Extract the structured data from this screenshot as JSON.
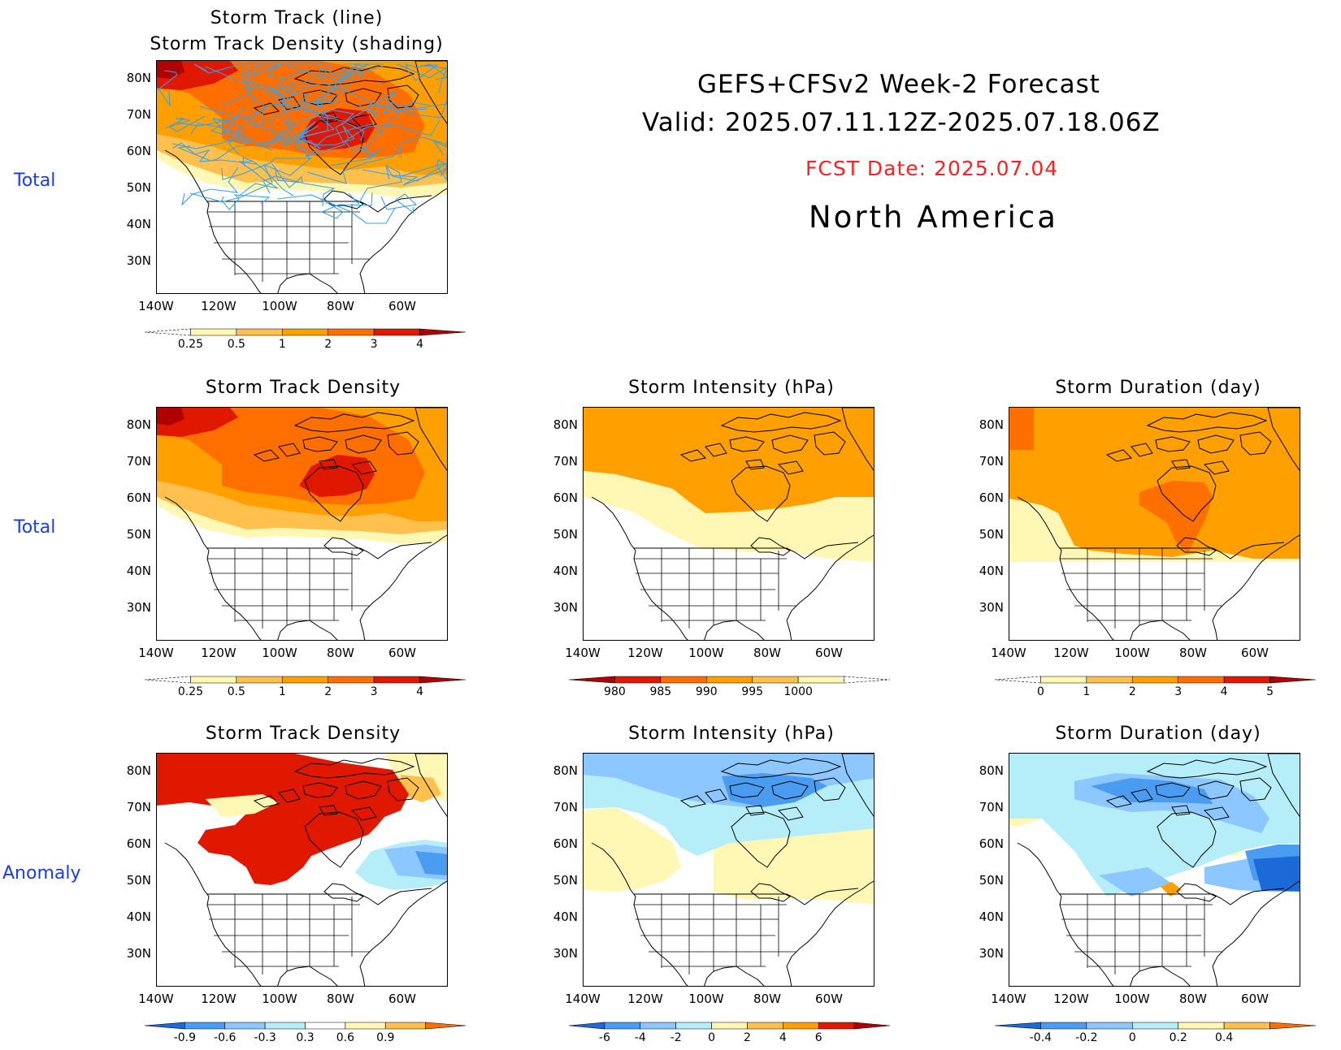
{
  "header": {
    "title_line1": "GEFS+CFSv2 Week-2 Forecast",
    "title_line2": "Valid: 2025.07.11.12Z-2025.07.18.06Z",
    "fcst_date": "FCST Date: 2025.07.04",
    "region": "North America"
  },
  "row_labels": [
    "Total",
    "Total",
    "Anomaly"
  ],
  "axes": {
    "lat_ticks": [
      "80N",
      "70N",
      "60N",
      "50N",
      "40N",
      "30N"
    ],
    "lon_ticks": [
      "140W",
      "120W",
      "100W",
      "80W",
      "60W"
    ]
  },
  "colors": {
    "pale_yellow": "#fff7b3",
    "light_orange": "#ffc04d",
    "orange": "#ffa000",
    "dark_orange": "#ff6f00",
    "red": "#e01800",
    "dark_red": "#b00000",
    "light_cyan": "#b5edf8",
    "light_blue": "#8cc7ff",
    "mid_blue": "#4a9cf0",
    "dark_blue": "#1c6ad8",
    "track_line": "#3aa0e8"
  },
  "panels": [
    {
      "id": "p-track",
      "title_line1": "Storm Track (line)",
      "title_line2": "Storm Track Density (shading)",
      "colorbar_labels": [
        "0.25",
        "0.5",
        "1",
        "2",
        "3",
        "4"
      ]
    },
    {
      "id": "p-density",
      "title_line1": "Storm Track Density",
      "colorbar_labels": [
        "0.25",
        "0.5",
        "1",
        "2",
        "3",
        "4"
      ]
    },
    {
      "id": "p-intensity",
      "title_line1": "Storm Intensity (hPa)",
      "colorbar_labels": [
        "980",
        "985",
        "990",
        "995",
        "1000"
      ]
    },
    {
      "id": "p-duration",
      "title_line1": "Storm Duration (day)",
      "colorbar_labels": [
        "0",
        "1",
        "2",
        "3",
        "4",
        "5"
      ]
    },
    {
      "id": "p-density-anom",
      "title_line1": "Storm Track Density",
      "colorbar_labels": [
        "-0.9",
        "-0.6",
        "-0.3",
        "0.3",
        "0.6",
        "0.9"
      ]
    },
    {
      "id": "p-intensity-anom",
      "title_line1": "Storm Intensity (hPa)",
      "colorbar_labels": [
        "-6",
        "-4",
        "-2",
        "0",
        "2",
        "4",
        "6"
      ]
    },
    {
      "id": "p-duration-anom",
      "title_line1": "Storm Duration (day)",
      "colorbar_labels": [
        "-0.4",
        "-0.2",
        "0",
        "0.2",
        "0.4"
      ]
    }
  ]
}
